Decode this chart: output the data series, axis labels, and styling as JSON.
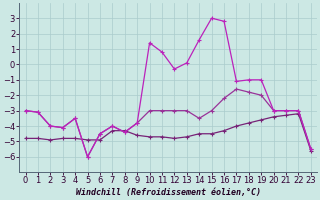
{
  "xlabel": "Windchill (Refroidissement éolien,°C)",
  "x": [
    0,
    1,
    2,
    3,
    4,
    5,
    6,
    7,
    8,
    9,
    10,
    11,
    12,
    13,
    14,
    15,
    16,
    17,
    18,
    19,
    20,
    21,
    22,
    23
  ],
  "line_spike": [
    -3,
    -3.1,
    -4,
    -4.1,
    -3.5,
    -6,
    -4.5,
    -4,
    -4.4,
    -3.8,
    1.4,
    0.8,
    -0.3,
    0.1,
    1.6,
    3.0,
    2.8,
    -1.1,
    -1.0,
    -1.0,
    -3.0,
    -3.0,
    -3.0,
    -5.5
  ],
  "line_mid": [
    -3,
    -3.1,
    -4,
    -4.1,
    -3.5,
    -6,
    -4.5,
    -4,
    -4.4,
    -3.8,
    -3.0,
    -3.0,
    -3.0,
    -3.0,
    -3.5,
    -3.0,
    -2.2,
    -1.6,
    -1.8,
    -2.0,
    -3.0,
    -3.0,
    -3.0,
    -5.5
  ],
  "line_flat": [
    -4.8,
    -4.8,
    -4.9,
    -4.8,
    -4.8,
    -4.9,
    -4.9,
    -4.3,
    -4.3,
    -4.6,
    -4.7,
    -4.7,
    -4.8,
    -4.7,
    -4.5,
    -4.5,
    -4.3,
    -4.0,
    -3.8,
    -3.6,
    -3.4,
    -3.3,
    -3.2,
    -5.6
  ],
  "bg_color": "#cce8e4",
  "grid_color": "#aacccc",
  "line_color_spike": "#bb22bb",
  "line_color_mid": "#993399",
  "line_color_flat": "#772277",
  "ylim": [
    -7,
    4
  ],
  "xlim": [
    -0.5,
    23.5
  ],
  "yticks": [
    -6,
    -5,
    -4,
    -3,
    -2,
    -1,
    0,
    1,
    2,
    3
  ],
  "xticks": [
    0,
    1,
    2,
    3,
    4,
    5,
    6,
    7,
    8,
    9,
    10,
    11,
    12,
    13,
    14,
    15,
    16,
    17,
    18,
    19,
    20,
    21,
    22,
    23
  ],
  "xlabel_fontsize": 6,
  "tick_fontsize": 6
}
